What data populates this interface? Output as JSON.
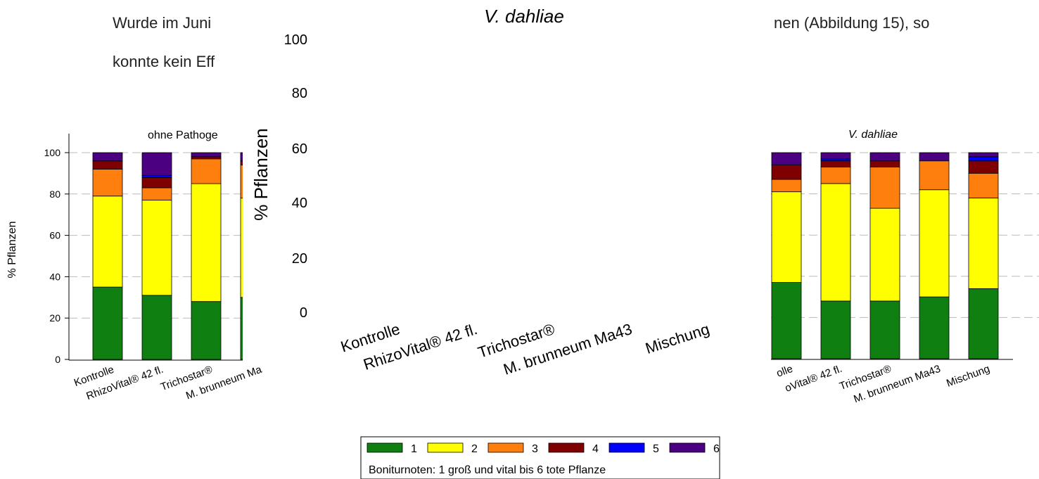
{
  "document": {
    "line1_left": "Wurde im Juni",
    "line1_right": "nen (Abbildung 15), so",
    "line2_left": "konnte kein Eff"
  },
  "center_overlay": {
    "title": "V. dahliae",
    "ylabel": "% Pflanzen",
    "y_ticks": [
      "0",
      "20",
      "40",
      "60",
      "80",
      "100"
    ],
    "categories": [
      "Kontrolle",
      "RhizoVital® 42 fl.",
      "Trichostar®",
      "M. brunneum Ma43",
      "Mischung"
    ]
  },
  "legend": {
    "items": [
      {
        "label": "1",
        "color": "#0f7f12"
      },
      {
        "label": "2",
        "color": "#ffff00"
      },
      {
        "label": "3",
        "color": "#ff7f0e"
      },
      {
        "label": "4",
        "color": "#7f0000"
      },
      {
        "label": "5",
        "color": "#0000ff"
      },
      {
        "label": "6",
        "color": "#4b0082"
      }
    ],
    "caption": "Boniturnoten: 1 groß und vital bis 6 tote Pflanze"
  },
  "chart_data": [
    {
      "type": "bar",
      "stacked": true,
      "title": "ohne Pathoge",
      "ylabel": "% Pflanzen",
      "ylim": [
        0,
        100
      ],
      "y_ticks": [
        0,
        20,
        40,
        60,
        80,
        100
      ],
      "grid": true,
      "categories": [
        "Kontrolle",
        "RhizoVital® 42 fl.",
        "Trichostar®",
        "M. brunneum Ma"
      ],
      "series": [
        {
          "name": "1",
          "color": "#0f7f12",
          "values": [
            35,
            31,
            28,
            30
          ]
        },
        {
          "name": "2",
          "color": "#ffff00",
          "values": [
            44,
            46,
            57,
            48
          ]
        },
        {
          "name": "3",
          "color": "#ff7f0e",
          "values": [
            13,
            6,
            12,
            16
          ]
        },
        {
          "name": "4",
          "color": "#7f0000",
          "values": [
            4,
            5,
            1,
            2
          ]
        },
        {
          "name": "5",
          "color": "#0000ff",
          "values": [
            0,
            1,
            0,
            0
          ]
        },
        {
          "name": "6",
          "color": "#4b0082",
          "values": [
            4,
            11,
            2,
            4
          ]
        }
      ]
    },
    {
      "type": "bar",
      "stacked": true,
      "title": "V. dahliae",
      "ylim": [
        0,
        100
      ],
      "grid": true,
      "categories": [
        "Kontrolle",
        "RhizoVital® 42 fl.",
        "Trichostar®",
        "M. brunneum Ma43",
        "Mischung"
      ],
      "category_labels": [
        "olle",
        "oVital® 42 fl.",
        "Trichostar®",
        "M. brunneum Ma43",
        "Mischung"
      ],
      "series": [
        {
          "name": "1",
          "color": "#0f7f12",
          "values": [
            37,
            28,
            28,
            30,
            34
          ]
        },
        {
          "name": "2",
          "color": "#ffff00",
          "values": [
            44,
            57,
            45,
            52,
            44
          ]
        },
        {
          "name": "3",
          "color": "#ff7f0e",
          "values": [
            6,
            8,
            20,
            14,
            12
          ]
        },
        {
          "name": "4",
          "color": "#7f0000",
          "values": [
            7,
            3,
            3,
            0,
            6
          ]
        },
        {
          "name": "5",
          "color": "#0000ff",
          "values": [
            0,
            1,
            0,
            0,
            2
          ]
        },
        {
          "name": "6",
          "color": "#4b0082",
          "values": [
            6,
            3,
            4,
            4,
            2
          ]
        }
      ]
    }
  ]
}
